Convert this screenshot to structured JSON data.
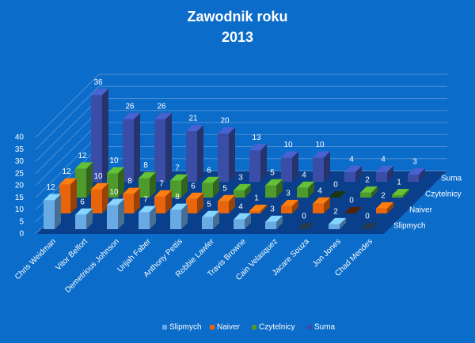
{
  "chart_data": {
    "type": "bar3d",
    "title": "Zawodnik  roku",
    "subtitle": "2013",
    "categories": [
      "Chris Weidman",
      "Vitor Belfort",
      "Demetrious Johnson",
      "Urijah Faber",
      "Anthony Pettis",
      "Robbie Lawler",
      "Travis Browne",
      "Cain Velasquez",
      "Jacare Souza",
      "Jon Jones",
      "Chad Mendes"
    ],
    "series": [
      {
        "name": "Slipmych",
        "color": "#6aaae4",
        "values": [
          12,
          6,
          10,
          7,
          8,
          5,
          4,
          3,
          0,
          2,
          0
        ]
      },
      {
        "name": "Naiver",
        "color": "#e8650c",
        "values": [
          12,
          10,
          8,
          7,
          6,
          5,
          1,
          3,
          4,
          0,
          2
        ]
      },
      {
        "name": "Czytelnicy",
        "color": "#4e9a2c",
        "values": [
          12,
          10,
          8,
          7,
          6,
          3,
          5,
          4,
          0,
          2,
          1
        ]
      },
      {
        "name": "Suma",
        "color": "#3a4ea8",
        "values": [
          36,
          26,
          26,
          21,
          20,
          13,
          10,
          10,
          4,
          4,
          3
        ]
      }
    ],
    "ylim": [
      0,
      40
    ],
    "yticks": [
      0,
      5,
      10,
      15,
      20,
      25,
      30,
      35,
      40
    ],
    "grid": true
  }
}
